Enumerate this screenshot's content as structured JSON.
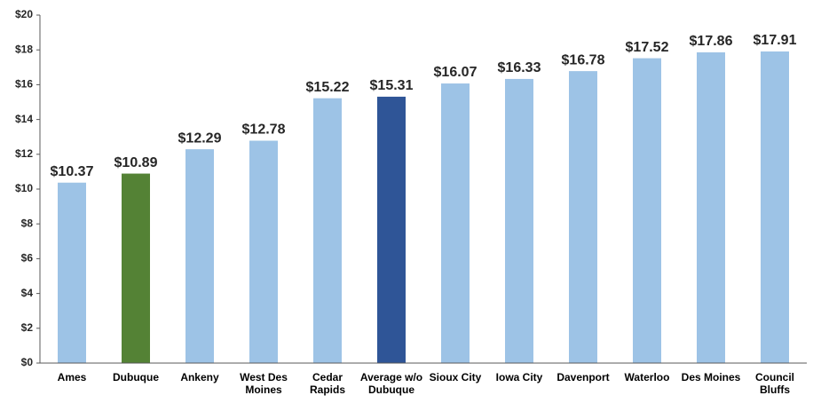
{
  "chart_data": {
    "type": "bar",
    "categories": [
      "Ames",
      "Dubuque",
      "Ankeny",
      "West Des Moines",
      "Cedar Rapids",
      "Average w/o Dubuque",
      "Sioux City",
      "Iowa City",
      "Davenport",
      "Waterloo",
      "Des Moines",
      "Council Bluffs"
    ],
    "values": [
      10.37,
      10.89,
      12.29,
      12.78,
      15.22,
      15.31,
      16.07,
      16.33,
      16.78,
      17.52,
      17.86,
      17.91
    ],
    "value_labels": [
      "$10.37",
      "$10.89",
      "$12.29",
      "$12.78",
      "$15.22",
      "$15.31",
      "$16.07",
      "$16.33",
      "$16.78",
      "$17.52",
      "$17.86",
      "$17.91"
    ],
    "colors": [
      "#9dc3e6",
      "#548235",
      "#9dc3e6",
      "#9dc3e6",
      "#9dc3e6",
      "#2f5597",
      "#9dc3e6",
      "#9dc3e6",
      "#9dc3e6",
      "#9dc3e6",
      "#9dc3e6",
      "#9dc3e6"
    ],
    "ylim": [
      0,
      20
    ],
    "yticks": [
      {
        "value": 0,
        "label": "$0"
      },
      {
        "value": 2,
        "label": "$2"
      },
      {
        "value": 4,
        "label": "$4"
      },
      {
        "value": 6,
        "label": "$6"
      },
      {
        "value": 8,
        "label": "$8"
      },
      {
        "value": 10,
        "label": "$10"
      },
      {
        "value": 12,
        "label": "$12"
      },
      {
        "value": 14,
        "label": "$14"
      },
      {
        "value": 16,
        "label": "$16"
      },
      {
        "value": 18,
        "label": "$18"
      },
      {
        "value": 20,
        "label": "$20"
      }
    ],
    "grid": false
  }
}
